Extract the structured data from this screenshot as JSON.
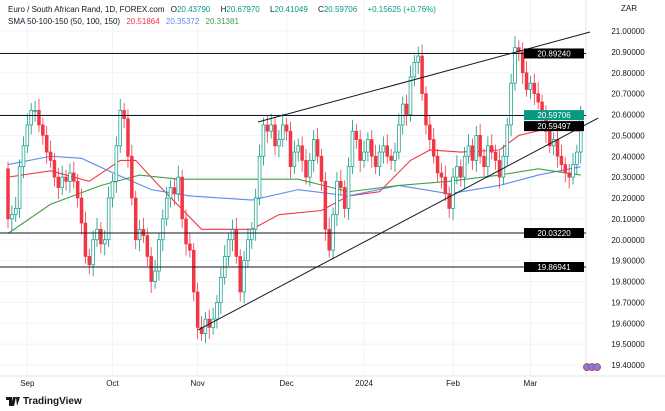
{
  "header": {
    "symbol_title": "Euro / South African Rand, 1D, FOREX.com",
    "open_label": "O",
    "open": "20.43790",
    "high_label": "H",
    "high": "20.67970",
    "low_label": "L",
    "low": "20.41049",
    "close_label": "C",
    "close": "20.59706",
    "change": "+0.15625 (+0.76%)",
    "sma_title": "SMA 50-100-150 (50, 100, 150)",
    "sma50_value": "20.51864",
    "sma100_value": "20.35372",
    "sma150_value": "20.31381",
    "currency": "ZAR"
  },
  "footer": {
    "brand": "TradingView"
  },
  "colors": {
    "up": "#089981",
    "down": "#f23645",
    "sma50": "#f23645",
    "sma100": "#5b8def",
    "sma150": "#43a047",
    "line": "#131722"
  },
  "chart_data": {
    "type": "candlestick",
    "ylim": [
      19.35,
      21.05
    ],
    "y_ticks": [
      "21.00000",
      "20.90000",
      "20.80000",
      "20.70000",
      "20.60000",
      "20.50000",
      "20.40000",
      "20.30000",
      "20.20000",
      "20.10000",
      "20.00000",
      "19.90000",
      "19.80000",
      "19.70000",
      "19.60000",
      "19.50000",
      "19.40000"
    ],
    "x_ticks": [
      {
        "label": "Sep",
        "bar": 5
      },
      {
        "label": "Oct",
        "bar": 27
      },
      {
        "label": "Nov",
        "bar": 49
      },
      {
        "label": "Dec",
        "bar": 72
      },
      {
        "label": "2024",
        "bar": 92
      },
      {
        "label": "Feb",
        "bar": 115
      },
      {
        "label": "Mar",
        "bar": 135
      }
    ],
    "first_open": 20.34,
    "close": [
      20.1,
      20.12,
      20.15,
      20.35,
      20.45,
      20.55,
      20.62,
      20.62,
      20.55,
      20.5,
      20.42,
      20.38,
      20.3,
      20.25,
      20.3,
      20.28,
      20.32,
      20.28,
      20.2,
      20.08,
      19.92,
      19.88,
      20.0,
      20.05,
      19.98,
      20.0,
      20.2,
      20.28,
      20.45,
      20.62,
      20.58,
      20.4,
      20.2,
      20.0,
      20.05,
      20.02,
      19.92,
      19.8,
      19.85,
      20.0,
      20.1,
      20.2,
      20.25,
      20.22,
      20.3,
      20.1,
      19.98,
      19.95,
      19.75,
      19.58,
      19.55,
      19.62,
      19.58,
      19.62,
      19.7,
      19.82,
      19.92,
      20.0,
      20.05,
      19.92,
      19.75,
      19.9,
      20.0,
      20.05,
      20.2,
      20.4,
      20.55,
      20.52,
      20.55,
      20.45,
      20.48,
      20.55,
      20.52,
      20.35,
      20.42,
      20.45,
      20.38,
      20.3,
      20.38,
      20.48,
      20.4,
      20.28,
      20.05,
      19.95,
      20.12,
      20.28,
      20.25,
      20.15,
      20.35,
      20.52,
      20.48,
      20.38,
      20.42,
      20.48,
      20.4,
      20.35,
      20.42,
      20.45,
      20.4,
      20.38,
      20.42,
      20.55,
      20.65,
      20.6,
      20.78,
      20.85,
      20.88,
      20.7,
      20.55,
      20.48,
      20.4,
      20.32,
      20.3,
      20.22,
      20.15,
      20.3,
      20.35,
      20.3,
      20.4,
      20.45,
      20.38,
      20.5,
      20.4,
      20.35,
      20.45,
      20.42,
      20.38,
      20.3,
      20.4,
      20.55,
      20.75,
      20.92,
      20.9,
      20.8,
      20.72,
      20.75,
      20.7,
      20.66,
      20.6,
      20.52,
      20.45,
      20.48,
      20.4,
      20.36,
      20.32,
      20.3,
      20.36,
      20.42,
      20.597
    ],
    "series": [
      {
        "name": "SMA 50",
        "values": [
          [
            0,
            20.3
          ],
          [
            11,
            20.33
          ],
          [
            21,
            20.28
          ],
          [
            29,
            20.38
          ],
          [
            33,
            20.38
          ],
          [
            39,
            20.26
          ],
          [
            50,
            20.05
          ],
          [
            63,
            20.05
          ],
          [
            70,
            20.12
          ],
          [
            81,
            20.14
          ],
          [
            88,
            20.21
          ],
          [
            96,
            20.23
          ],
          [
            104,
            20.38
          ],
          [
            109,
            20.43
          ],
          [
            117,
            20.42
          ],
          [
            127,
            20.43
          ],
          [
            132,
            20.5
          ],
          [
            139,
            20.53
          ],
          [
            148,
            20.52
          ]
        ]
      },
      {
        "name": "SMA 100",
        "values": [
          [
            0,
            20.36
          ],
          [
            11,
            20.4
          ],
          [
            19,
            20.39
          ],
          [
            26,
            20.33
          ],
          [
            37,
            20.24
          ],
          [
            47,
            20.21
          ],
          [
            63,
            20.19
          ],
          [
            75,
            20.24
          ],
          [
            88,
            20.21
          ],
          [
            101,
            20.26
          ],
          [
            114,
            20.22
          ],
          [
            127,
            20.26
          ],
          [
            137,
            20.31
          ],
          [
            148,
            20.35
          ]
        ]
      },
      {
        "name": "SMA 150",
        "values": [
          [
            0,
            20.03
          ],
          [
            11,
            20.17
          ],
          [
            24,
            20.26
          ],
          [
            34,
            20.31
          ],
          [
            44,
            20.29
          ],
          [
            63,
            20.29
          ],
          [
            75,
            20.29
          ],
          [
            88,
            20.23
          ],
          [
            101,
            20.26
          ],
          [
            114,
            20.28
          ],
          [
            127,
            20.31
          ],
          [
            137,
            20.34
          ],
          [
            148,
            20.31
          ]
        ]
      }
    ],
    "horizontal_levels": [
      {
        "value": 20.8924,
        "label": "20.89240"
      },
      {
        "value": 20.59497,
        "label": "20.59497"
      },
      {
        "value": 20.0322,
        "label": "20.03220"
      },
      {
        "value": 19.86941,
        "label": "19.86941"
      }
    ],
    "last_price_label": "20.59706",
    "trendlines": [
      {
        "from": [
          49.1,
          19.568
        ],
        "to": [
          152.5,
          20.583
        ]
      },
      {
        "from": [
          64.6,
          20.564
        ],
        "to": [
          150.4,
          20.995
        ]
      }
    ]
  }
}
